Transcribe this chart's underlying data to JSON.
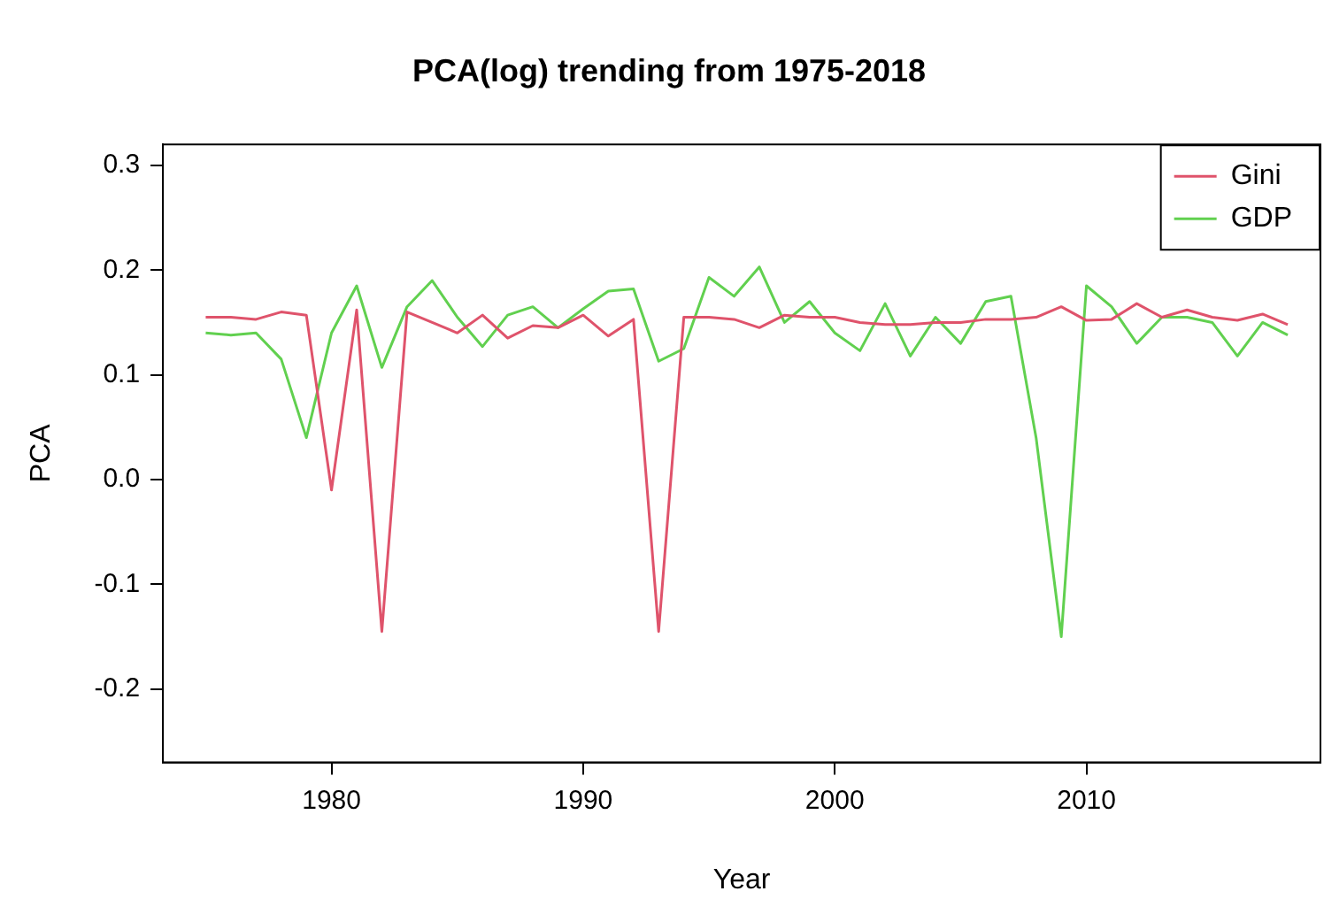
{
  "chart_data": {
    "type": "line",
    "title": "PCA(log) trending from 1975-2018",
    "xlabel": "Year",
    "ylabel": "PCA",
    "x": [
      1975,
      1976,
      1977,
      1978,
      1979,
      1980,
      1981,
      1982,
      1983,
      1984,
      1985,
      1986,
      1987,
      1988,
      1989,
      1990,
      1991,
      1992,
      1993,
      1994,
      1995,
      1996,
      1997,
      1998,
      1999,
      2000,
      2001,
      2002,
      2003,
      2004,
      2005,
      2006,
      2007,
      2008,
      2009,
      2010,
      2011,
      2012,
      2013,
      2014,
      2015,
      2016,
      2017,
      2018
    ],
    "series": [
      {
        "name": "Gini",
        "color": "#df536b",
        "values": [
          0.155,
          0.155,
          0.153,
          0.16,
          0.157,
          -0.01,
          0.162,
          -0.145,
          0.16,
          0.15,
          0.14,
          0.157,
          0.135,
          0.147,
          0.145,
          0.157,
          0.137,
          0.153,
          -0.145,
          0.155,
          0.155,
          0.153,
          0.145,
          0.157,
          0.155,
          0.155,
          0.15,
          0.148,
          0.148,
          0.15,
          0.15,
          0.153,
          0.153,
          0.155,
          0.165,
          0.152,
          0.153,
          0.168,
          0.155,
          0.162,
          0.155,
          0.152,
          0.158,
          0.148
        ]
      },
      {
        "name": "GDP",
        "color": "#61d04f",
        "values": [
          0.14,
          0.138,
          0.14,
          0.115,
          0.04,
          0.14,
          0.185,
          0.107,
          0.165,
          0.19,
          0.155,
          0.127,
          0.157,
          0.165,
          0.145,
          0.163,
          0.18,
          0.182,
          0.113,
          0.125,
          0.193,
          0.175,
          0.203,
          0.15,
          0.17,
          0.14,
          0.123,
          0.168,
          0.118,
          0.155,
          0.13,
          0.17,
          0.175,
          0.04,
          -0.15,
          0.185,
          0.165,
          0.13,
          0.155,
          0.155,
          0.15,
          0.118,
          0.15,
          0.138
        ]
      }
    ],
    "xlim": [
      1973.3,
      2019.3
    ],
    "xticks": [
      1980,
      1990,
      2000,
      2010
    ],
    "ylim": [
      -0.27,
      0.32
    ],
    "yticks": [
      -0.2,
      -0.1,
      {
        "value": 0,
        "label": "0.0"
      },
      0.1,
      0.2,
      0.3
    ],
    "legend": "top right",
    "grid": false,
    "marker": "none",
    "line_style": "solid"
  }
}
